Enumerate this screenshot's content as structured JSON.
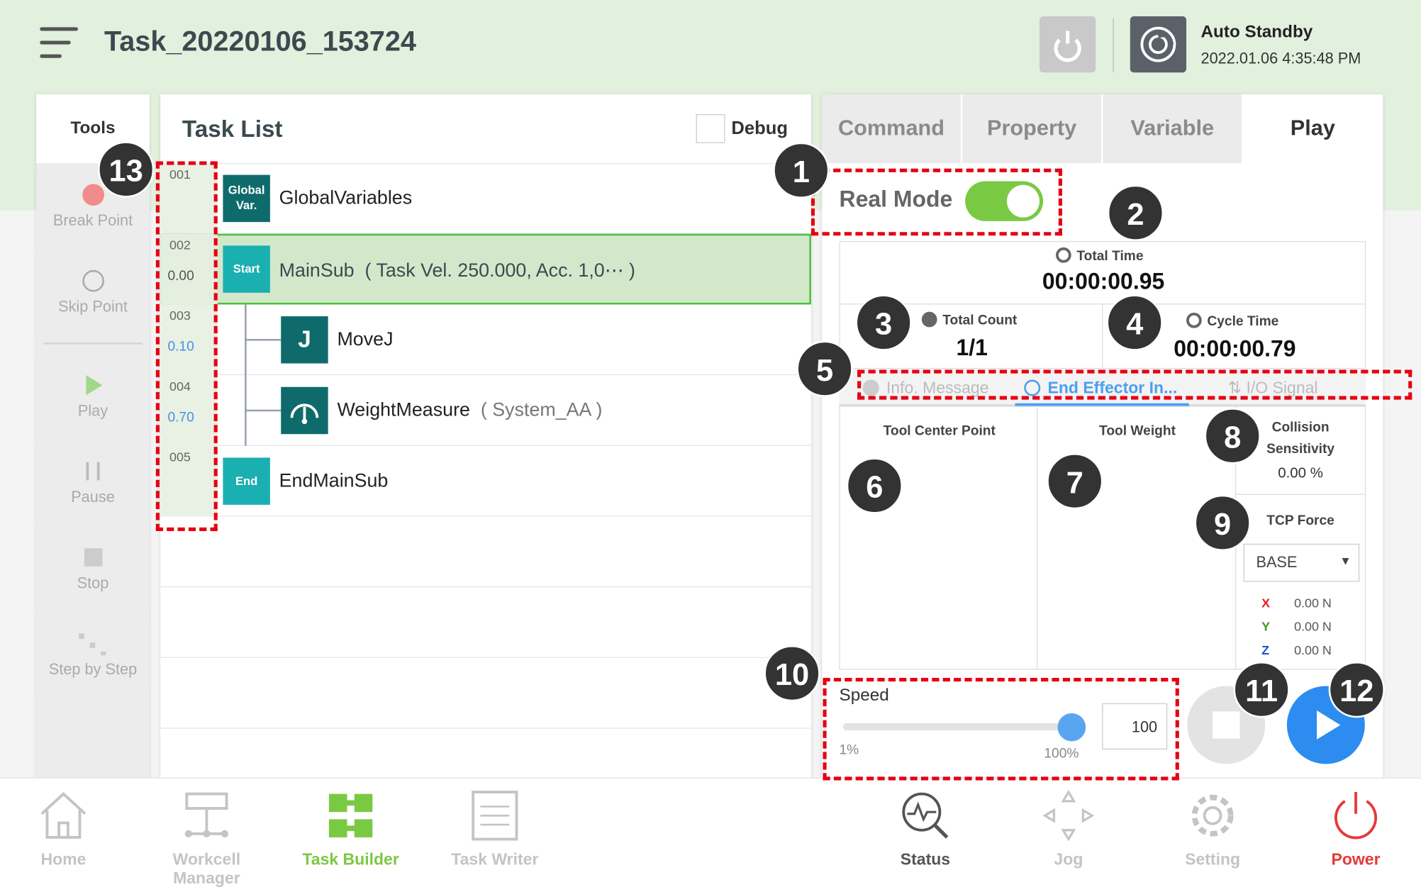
{
  "header": {
    "title": "Task_20220106_153724",
    "status": "Auto Standby",
    "datetime": "2022.01.06 4:35:48 PM"
  },
  "tools": {
    "title": "Tools",
    "items": [
      {
        "label": "Break Point"
      },
      {
        "label": "Skip Point"
      },
      {
        "label": "Play"
      },
      {
        "label": "Pause"
      },
      {
        "label": "Stop"
      },
      {
        "label": "Step by Step"
      }
    ]
  },
  "task_list": {
    "title": "Task List",
    "debug_label": "Debug",
    "debug_checked": false,
    "rows": [
      {
        "line": "001",
        "time": "",
        "badge": "Global Var.",
        "name": "GlobalVariables",
        "detail": ""
      },
      {
        "line": "002",
        "time": "0.00",
        "badge": "Start",
        "name": "MainSub",
        "detail": "( Task Vel. 250.000, Acc. 1,0⋯ )"
      },
      {
        "line": "003",
        "time": "0.10",
        "badge": "J",
        "name": "MoveJ",
        "detail": ""
      },
      {
        "line": "004",
        "time": "0.70",
        "badge": "gauge",
        "name": "WeightMeasure",
        "detail": "( System_AA )"
      },
      {
        "line": "005",
        "time": "",
        "badge": "End",
        "name": "EndMainSub",
        "detail": ""
      }
    ]
  },
  "right": {
    "tabs": [
      "Command",
      "Property",
      "Variable",
      "Play"
    ],
    "active_tab": "Play",
    "real_mode_label": "Real Mode",
    "real_mode_on": true,
    "total_time_label": "Total Time",
    "total_time": "00:00:00.95",
    "total_count_label": "Total Count",
    "total_count": "1/1",
    "cycle_time_label": "Cycle Time",
    "cycle_time": "00:00:00.79",
    "subtabs": [
      "Info. Message",
      "End Effector In...",
      "I/O Signal"
    ],
    "active_subtab": "End Effector In...",
    "tcp_label": "Tool Center Point",
    "weight_label": "Tool Weight",
    "collision_label_1": "Collision",
    "collision_label_2": "Sensitivity",
    "collision_value": "0.00 %",
    "tcp_force_label": "TCP Force",
    "tcp_force_frame": "BASE",
    "force": [
      {
        "axis": "X",
        "value": "0.00 N",
        "color": "#e02020"
      },
      {
        "axis": "Y",
        "value": "0.00 N",
        "color": "#3a9a20"
      },
      {
        "axis": "Z",
        "value": "0.00 N",
        "color": "#2050d0"
      }
    ],
    "speed_label": "Speed",
    "speed_value": "100",
    "speed_min": "1%",
    "speed_max": "100%",
    "speed_percent": 100
  },
  "annotations": [
    "1",
    "2",
    "3",
    "4",
    "5",
    "6",
    "7",
    "8",
    "9",
    "10",
    "11",
    "12",
    "13"
  ],
  "nav": [
    {
      "label": "Home"
    },
    {
      "label": "Workcell Manager"
    },
    {
      "label": "Task Builder"
    },
    {
      "label": "Task Writer"
    },
    {
      "label": "Status"
    },
    {
      "label": "Jog"
    },
    {
      "label": "Setting"
    },
    {
      "label": "Power"
    }
  ],
  "colors": {
    "accent_green": "#7ac943",
    "play_blue": "#2d8cf0",
    "teal": "#0f6b6b",
    "power_red": "#e53935"
  }
}
